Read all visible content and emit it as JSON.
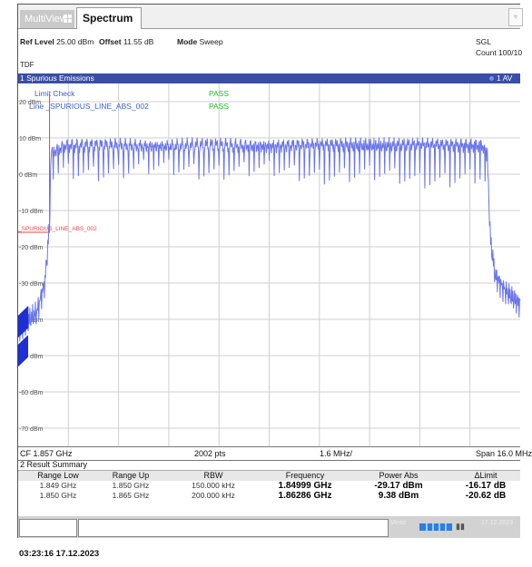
{
  "tabs": [
    {
      "label": "MultiView",
      "active": false
    },
    {
      "label": "Spectrum",
      "active": true
    }
  ],
  "corner_glyph": "▿",
  "header": {
    "ref_level_label": "Ref Level",
    "ref_level_value": "25.00 dBm",
    "offset_label": "Offset",
    "offset_value": "11.55 dB",
    "mode_label": "Mode",
    "mode_value": "Sweep",
    "sgl": "SGL",
    "count": "Count 100/10",
    "tdf": "TDF"
  },
  "panel": {
    "title": "1 Spurious Emissions",
    "trace": "1 AV"
  },
  "limit_check": {
    "title": "Limit Check",
    "title_status": "PASS",
    "line": "Line _SPURIOUS_LINE_ABS_002",
    "line_status": "PASS",
    "marker_label": "_SPURIOUS_LINE_ABS_002"
  },
  "y_axis": {
    "labels": [
      "20 dBm",
      "10 dBm",
      "0 dBm",
      "-10 dBm",
      "-20 dBm",
      "-30 dBm",
      "-40 dBm",
      "-50 dBm",
      "-60 dBm",
      "-70 dBm"
    ],
    "max": 25,
    "min": -75
  },
  "status_bar": {
    "cf": "CF 1.857 GHz",
    "points": "2002 pts",
    "div": "1.6 MHz/",
    "span": "Span 16.0 MHz"
  },
  "results": {
    "title": "2 Result Summary",
    "headers": [
      "Range Low",
      "Range Up",
      "RBW",
      "Frequency",
      "Power Abs",
      "ΔLimit"
    ],
    "rows": [
      {
        "range_low": "1.849 GHz",
        "range_up": "1.850 GHz",
        "rbw": "150.000 kHz",
        "frequency": "1.84999 GHz",
        "power_abs": "-29.17 dBm",
        "delta_limit": "-16.17 dB"
      },
      {
        "range_low": "1.850 GHz",
        "range_up": "1.865 GHz",
        "rbw": "200.000 kHz",
        "frequency": "1.86286 GHz",
        "power_abs": "9.38 dBm",
        "delta_limit": "-20.62 dB"
      }
    ]
  },
  "bottom_strip": {
    "left_text": "Meas",
    "right_text": "17.12.2023"
  },
  "timestamp": "03:23:16  17.12.2023",
  "colors": {
    "trace": "#6a75e8",
    "limit": "#e54545",
    "panel": "#3a4ea3",
    "pass": "#22bb22",
    "label_blue": "#3a5fd6"
  },
  "chart_data": {
    "type": "line",
    "xlabel": "",
    "ylabel": "",
    "x_range_mhz": [
      -8,
      8
    ],
    "ylim": [
      -75,
      25
    ],
    "series": [
      {
        "name": "",
        "x": [
          -8.0,
          -7.4,
          -7.15,
          -7.0,
          -6.95,
          -6.5,
          -5.0,
          -2.0,
          0,
          2.0,
          5.0,
          6.5,
          6.8,
          6.95,
          7.05,
          7.2,
          7.5,
          8.0
        ],
        "y": [
          -43,
          -38,
          -30,
          -14,
          6,
          8,
          8,
          8,
          8,
          8,
          8,
          8,
          8,
          5,
          -18,
          -28,
          -32,
          -36
        ]
      }
    ],
    "limit_line": {
      "x": [
        -8.0,
        -7.0,
        -7.0
      ],
      "y": [
        -16,
        -16,
        22
      ]
    }
  }
}
